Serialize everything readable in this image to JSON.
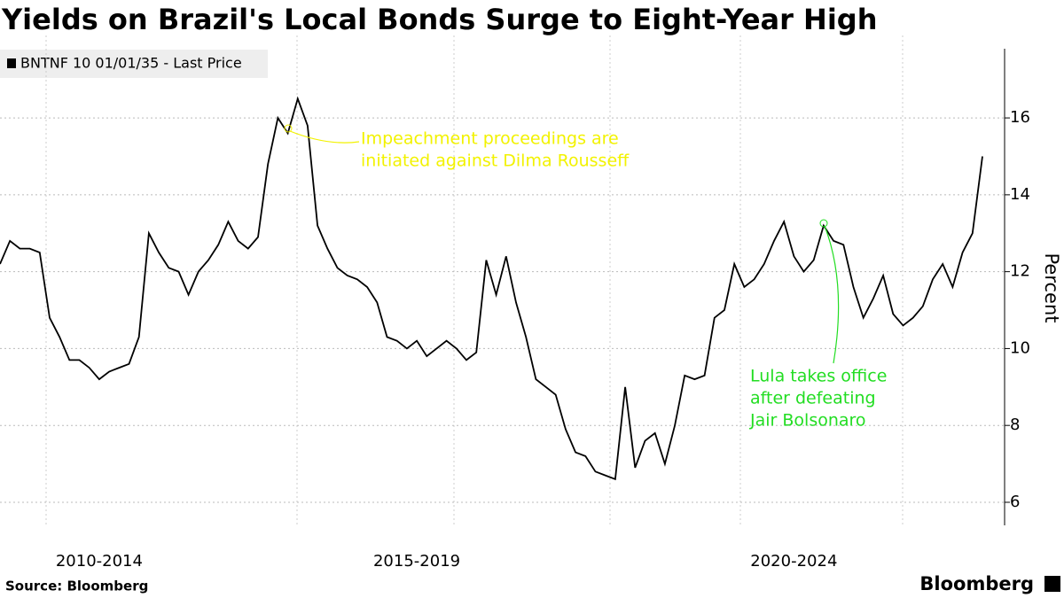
{
  "chart_data": {
    "type": "line",
    "title": "Yields on Brazil's Local Bonds Surge to Eight-Year High",
    "y_label": "Percent",
    "source": "Source: Bloomberg",
    "brand": "Bloomberg",
    "categories": [
      null,
      null,
      null,
      null,
      null,
      null,
      null,
      null,
      null,
      null,
      "2010-2014",
      null,
      null,
      null,
      null,
      null,
      null,
      null,
      null,
      null,
      null,
      null,
      null,
      null,
      null,
      null,
      null,
      null,
      null,
      null,
      null,
      null,
      null,
      null,
      null,
      null,
      null,
      null,
      null,
      null,
      null,
      null,
      "2015-2019",
      null,
      null,
      null,
      null,
      null,
      null,
      null,
      null,
      null,
      null,
      null,
      null,
      null,
      null,
      null,
      null,
      null,
      null,
      null,
      null,
      null,
      null,
      null,
      null,
      null,
      null,
      null,
      null,
      null,
      null,
      null,
      null,
      null,
      null,
      null,
      null,
      null,
      "2020-2024",
      null,
      null,
      null,
      null,
      null,
      null,
      null,
      null,
      null,
      null,
      null,
      null,
      null,
      null,
      null,
      null,
      null,
      null,
      null
    ],
    "series": [
      {
        "name": "BNTNF 10 01/01/35 - Last Price",
        "color": "#000000",
        "values": [
          12.2,
          12.8,
          12.6,
          12.6,
          12.5,
          10.8,
          10.3,
          9.7,
          9.7,
          9.5,
          9.2,
          9.4,
          9.5,
          9.6,
          10.3,
          13.0,
          12.5,
          12.1,
          12.0,
          11.4,
          12.0,
          12.3,
          12.7,
          13.3,
          12.8,
          12.6,
          12.9,
          14.8,
          16.0,
          15.6,
          16.5,
          15.8,
          13.2,
          12.6,
          12.1,
          11.9,
          11.8,
          11.6,
          11.2,
          10.3,
          10.2,
          10.0,
          10.2,
          9.8,
          10.0,
          10.2,
          10.0,
          9.7,
          9.9,
          12.3,
          11.4,
          12.4,
          11.2,
          10.3,
          9.2,
          9.0,
          8.8,
          7.9,
          7.3,
          7.2,
          6.8,
          6.7,
          6.6,
          9.0,
          6.9,
          7.6,
          7.8,
          7.0,
          8.0,
          9.3,
          9.2,
          9.3,
          10.8,
          11.0,
          12.2,
          11.6,
          11.8,
          12.2,
          12.8,
          13.3,
          12.4,
          12.0,
          12.3,
          13.2,
          12.8,
          12.7,
          11.6,
          10.8,
          11.3,
          11.9,
          10.9,
          10.6,
          10.8,
          11.1,
          11.8,
          12.2,
          11.6,
          12.5,
          13.0,
          15.0
        ]
      }
    ],
    "ylim": [
      5.4,
      17.8
    ],
    "yticks": [
      6,
      8,
      10,
      12,
      14,
      16
    ],
    "grid": true,
    "annotations": [
      {
        "lines": [
          "Impeachment proceedings are",
          "initiated against Dilma Rousseff"
        ],
        "color": "#f2f200"
      },
      {
        "lines": [
          "Lula takes office",
          "after defeating",
          "Jair Bolsonaro"
        ],
        "color": "#22dd22"
      }
    ]
  }
}
